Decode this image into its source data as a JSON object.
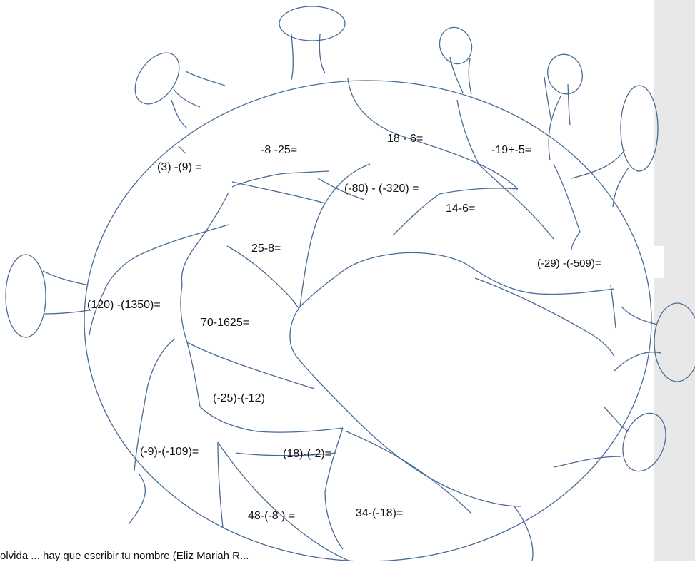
{
  "problems": [
    "(3) -(9) =",
    "-8 -25=",
    "18 - 6=",
    "-19+-5=",
    "(-80) - (-320) =",
    "14-6=",
    "25-8=",
    "(-29) -(-509)=",
    "(120) -(1350)=",
    "70-1625=",
    "(-25)-(-12)",
    "(-9)-(-109)=",
    "(18)-(-2)=",
    "48-(-8 ) =",
    "34-(-18)="
  ],
  "footer_text": "olvida ... hay que escribir tu nombre (Eliz Mariah R..."
}
